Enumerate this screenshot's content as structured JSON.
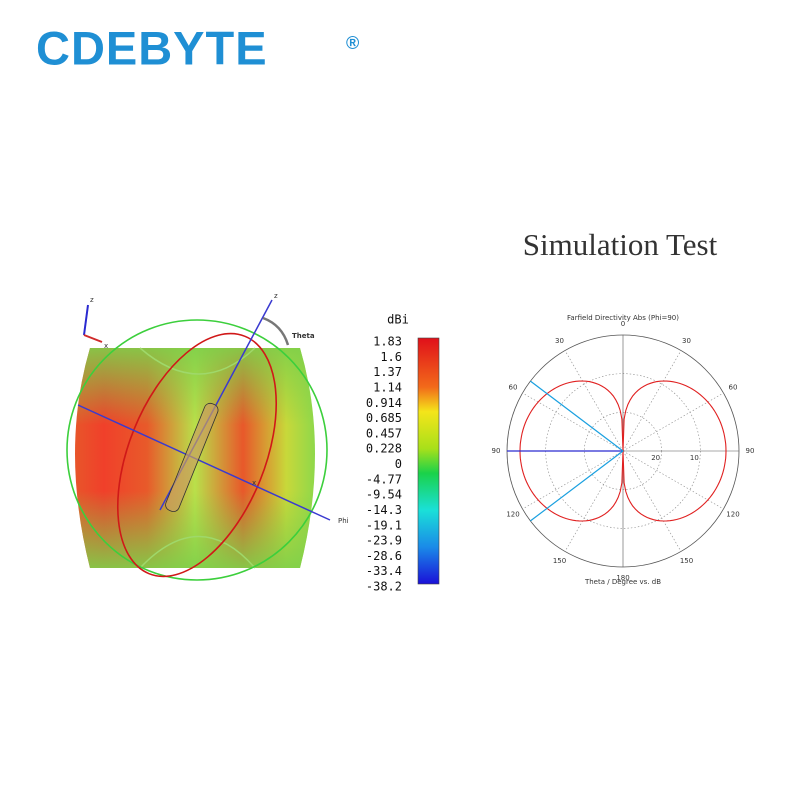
{
  "header": {
    "brand": "CDEBYTE",
    "mark": "®"
  },
  "title": "Simulation Test",
  "pattern3d": {
    "axis_z": "z",
    "axis_x": "x",
    "theta": "Theta",
    "phi": "Phi",
    "mini_z": "z",
    "mini_x": "x"
  },
  "colorbar": {
    "unit": "dBi",
    "labels": [
      "1.83",
      "1.6",
      "1.37",
      "1.14",
      "0.914",
      "0.685",
      "0.457",
      "0.228",
      "0",
      "-4.77",
      "-9.54",
      "-14.3",
      "-19.1",
      "-23.9",
      "-28.6",
      "-33.4",
      "-38.2"
    ]
  },
  "polar": {
    "title": "Farfield Directivity Abs (Phi=90)",
    "angle_labels": [
      "0",
      "30",
      "60",
      "90",
      "120",
      "150",
      "180",
      "150",
      "120",
      "90",
      "60",
      "30"
    ],
    "radial_labels": [
      "20",
      "10"
    ],
    "footer": "Theta / Degree vs. dB"
  }
}
